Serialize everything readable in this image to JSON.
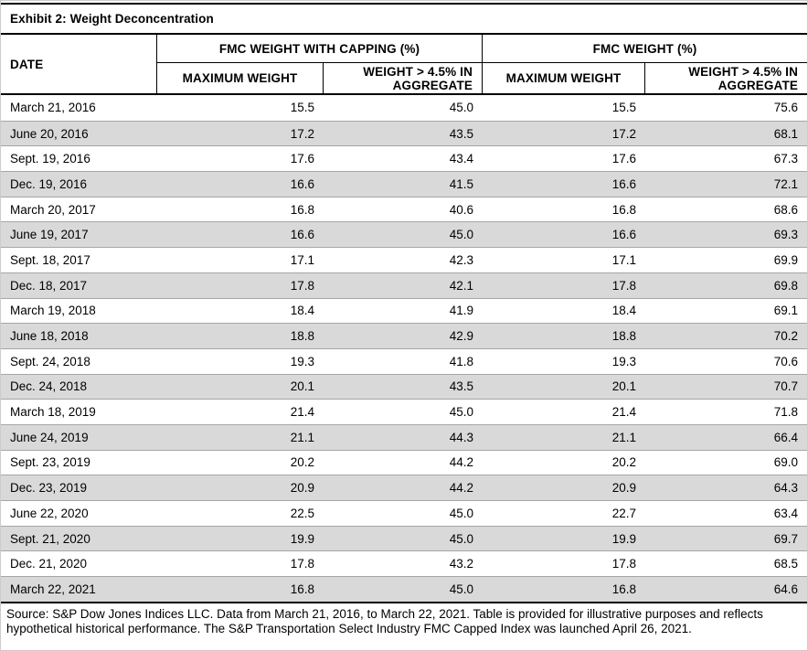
{
  "title": "Exhibit 2: Weight Deconcentration",
  "table": {
    "columns": {
      "date": "DATE",
      "group_capped": "FMC WEIGHT WITH CAPPING (%)",
      "group_uncapped": "FMC WEIGHT (%)",
      "max_weight": "MAXIMUM WEIGHT",
      "agg_weight": "WEIGHT > 4.5% IN AGGREGATE"
    },
    "rows": [
      {
        "date": "March 21, 2016",
        "capped_max": "15.5",
        "capped_agg": "45.0",
        "fmc_max": "15.5",
        "fmc_agg": "75.6"
      },
      {
        "date": "June 20, 2016",
        "capped_max": "17.2",
        "capped_agg": "43.5",
        "fmc_max": "17.2",
        "fmc_agg": "68.1"
      },
      {
        "date": "Sept. 19, 2016",
        "capped_max": "17.6",
        "capped_agg": "43.4",
        "fmc_max": "17.6",
        "fmc_agg": "67.3"
      },
      {
        "date": "Dec. 19, 2016",
        "capped_max": "16.6",
        "capped_agg": "41.5",
        "fmc_max": "16.6",
        "fmc_agg": "72.1"
      },
      {
        "date": "March 20, 2017",
        "capped_max": "16.8",
        "capped_agg": "40.6",
        "fmc_max": "16.8",
        "fmc_agg": "68.6"
      },
      {
        "date": "June 19, 2017",
        "capped_max": "16.6",
        "capped_agg": "45.0",
        "fmc_max": "16.6",
        "fmc_agg": "69.3"
      },
      {
        "date": "Sept. 18, 2017",
        "capped_max": "17.1",
        "capped_agg": "42.3",
        "fmc_max": "17.1",
        "fmc_agg": "69.9"
      },
      {
        "date": "Dec. 18, 2017",
        "capped_max": "17.8",
        "capped_agg": "42.1",
        "fmc_max": "17.8",
        "fmc_agg": "69.8"
      },
      {
        "date": "March 19, 2018",
        "capped_max": "18.4",
        "capped_agg": "41.9",
        "fmc_max": "18.4",
        "fmc_agg": "69.1"
      },
      {
        "date": "June 18, 2018",
        "capped_max": "18.8",
        "capped_agg": "42.9",
        "fmc_max": "18.8",
        "fmc_agg": "70.2"
      },
      {
        "date": "Sept. 24, 2018",
        "capped_max": "19.3",
        "capped_agg": "41.8",
        "fmc_max": "19.3",
        "fmc_agg": "70.6"
      },
      {
        "date": "Dec. 24, 2018",
        "capped_max": "20.1",
        "capped_agg": "43.5",
        "fmc_max": "20.1",
        "fmc_agg": "70.7"
      },
      {
        "date": "March 18, 2019",
        "capped_max": "21.4",
        "capped_agg": "45.0",
        "fmc_max": "21.4",
        "fmc_agg": "71.8"
      },
      {
        "date": "June 24, 2019",
        "capped_max": "21.1",
        "capped_agg": "44.3",
        "fmc_max": "21.1",
        "fmc_agg": "66.4"
      },
      {
        "date": "Sept. 23, 2019",
        "capped_max": "20.2",
        "capped_agg": "44.2",
        "fmc_max": "20.2",
        "fmc_agg": "69.0"
      },
      {
        "date": "Dec. 23, 2019",
        "capped_max": "20.9",
        "capped_agg": "44.2",
        "fmc_max": "20.9",
        "fmc_agg": "64.3"
      },
      {
        "date": "June 22, 2020",
        "capped_max": "22.5",
        "capped_agg": "45.0",
        "fmc_max": "22.7",
        "fmc_agg": "63.4"
      },
      {
        "date": "Sept. 21, 2020",
        "capped_max": "19.9",
        "capped_agg": "45.0",
        "fmc_max": "19.9",
        "fmc_agg": "69.7"
      },
      {
        "date": "Dec. 21, 2020",
        "capped_max": "17.8",
        "capped_agg": "43.2",
        "fmc_max": "17.8",
        "fmc_agg": "68.5"
      },
      {
        "date": "March 22, 2021",
        "capped_max": "16.8",
        "capped_agg": "45.0",
        "fmc_max": "16.8",
        "fmc_agg": "64.6"
      }
    ]
  },
  "footer": "Source: S&P Dow Jones Indices LLC. Data from March 21, 2016, to March 22, 2021. Table is provided for illustrative purposes and reflects hypothetical historical performance. The S&P Transportation Select Industry FMC Capped Index was launched April 26, 2021.",
  "colors": {
    "alt_row": "#d9d9d9",
    "row_separator": "#a6a6a6",
    "border": "#000000"
  }
}
